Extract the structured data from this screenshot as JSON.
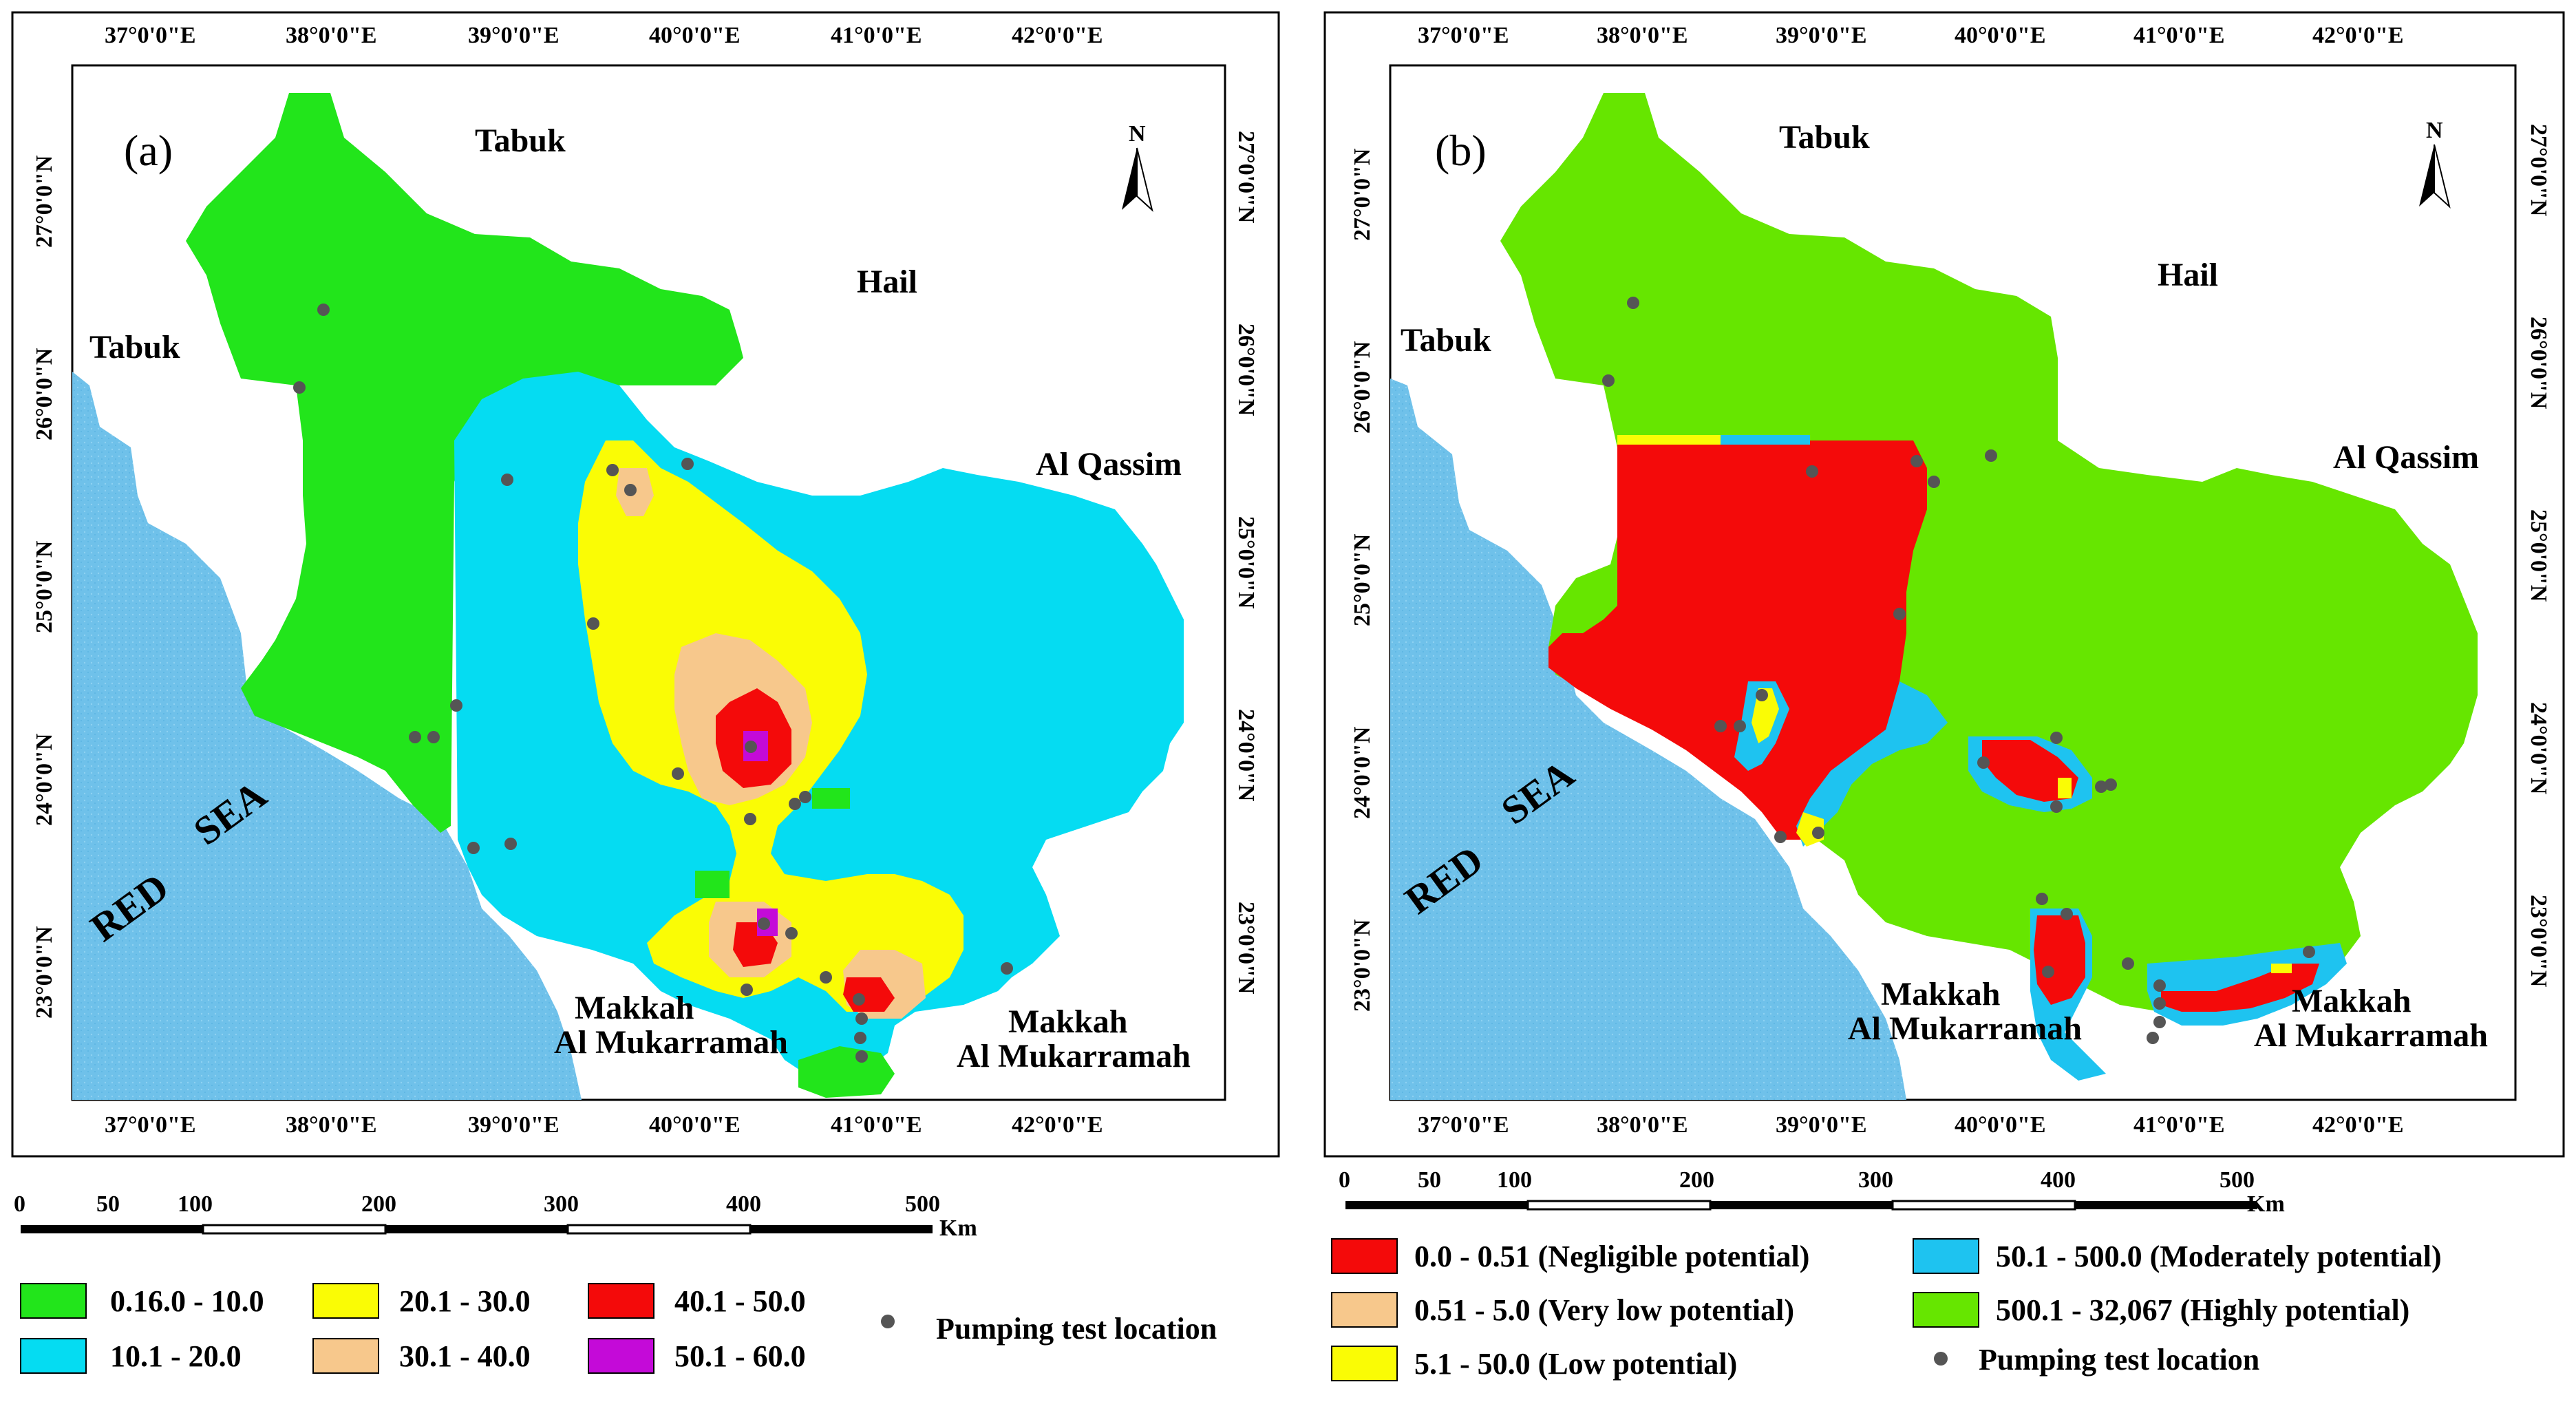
{
  "colors": {
    "sea": "#6fc1ea",
    "green_a": "#22e51b",
    "cyan": "#05dcf2",
    "yellow": "#fafc05",
    "peach": "#f7c88c",
    "red": "#f40a0a",
    "purple": "#c40ad8",
    "green_b": "#66e600",
    "blue_b": "#1ec3f0",
    "point": "#555555"
  },
  "panel_a": {
    "label": "(a)",
    "places": {
      "tabuk_top": "Tabuk",
      "tabuk_left": "Tabuk",
      "hail": "Hail",
      "al_qassim": "Al Qassim",
      "makkah_left_1": "Makkah",
      "makkah_left_2": "Al Mukarramah",
      "makkah_right_1": "Makkah",
      "makkah_right_2": "Al Mukarramah",
      "sea_1": "RED",
      "sea_2": "SEA"
    },
    "north": "N",
    "x_ticks": [
      "37°0'0\"E",
      "38°0'0\"E",
      "39°0'0\"E",
      "40°0'0\"E",
      "41°0'0\"E",
      "42°0'0\"E"
    ],
    "y_ticks": [
      "27°0'0\"N",
      "26°0'0\"N",
      "25°0'0\"N",
      "24°0'0\"N",
      "23°0'0\"N"
    ],
    "scale": {
      "labels": [
        "0",
        "50",
        "100",
        "200",
        "300",
        "400",
        "500"
      ],
      "unit": "Km"
    },
    "legend": [
      {
        "color": "#22e51b",
        "label": "0.16.0 - 10.0"
      },
      {
        "color": "#05dcf2",
        "label": "10.1 - 20.0"
      },
      {
        "color": "#fafc05",
        "label": "20.1 - 30.0"
      },
      {
        "color": "#f7c88c",
        "label": "30.1 - 40.0"
      },
      {
        "color": "#f40a0a",
        "label": "40.1 - 50.0"
      },
      {
        "color": "#c40ad8",
        "label": "50.1 - 60.0"
      }
    ],
    "point_legend": "Pumping test location"
  },
  "panel_b": {
    "label": "(b)",
    "places": {
      "tabuk_top": "Tabuk",
      "tabuk_left": "Tabuk",
      "hail": "Hail",
      "al_qassim": "Al Qassim",
      "makkah_left_1": "Makkah",
      "makkah_left_2": "Al Mukarramah",
      "makkah_right_1": "Makkah",
      "makkah_right_2": "Al Mukarramah",
      "sea_1": "RED",
      "sea_2": "SEA"
    },
    "north": "N",
    "x_ticks": [
      "37°0'0\"E",
      "38°0'0\"E",
      "39°0'0\"E",
      "40°0'0\"E",
      "41°0'0\"E",
      "42°0'0\"E"
    ],
    "y_ticks": [
      "27°0'0\"N",
      "26°0'0\"N",
      "25°0'0\"N",
      "24°0'0\"N",
      "23°0'0\"N"
    ],
    "scale": {
      "labels": [
        "0",
        "50",
        "100",
        "200",
        "300",
        "400",
        "500"
      ],
      "unit": "Km"
    },
    "legend": [
      {
        "color": "#f40a0a",
        "label": "0.0 - 0.51 (Negligible potential)"
      },
      {
        "color": "#1ec3f0",
        "label": "50.1 - 500.0 (Moderately potential)"
      },
      {
        "color": "#f7c88c",
        "label": "0.51 - 5.0 (Very low potential)"
      },
      {
        "color": "#66e600",
        "label": "500.1 - 32,067 (Highly potential)"
      },
      {
        "color": "#fafc05",
        "label": "5.1 - 50.0 (Low potential)"
      }
    ],
    "point_legend": "Pumping test location"
  }
}
